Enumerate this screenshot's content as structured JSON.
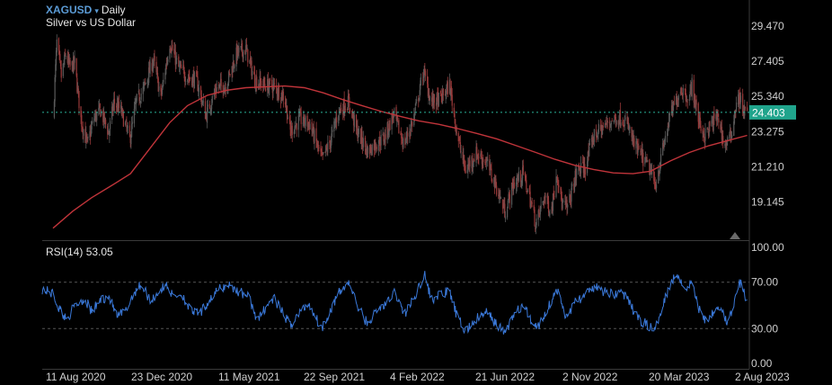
{
  "header": {
    "symbol": "XAGUSD",
    "dropdown_glyph": "▾",
    "timeframe": "Daily",
    "description": "Silver vs US Dollar"
  },
  "indicator": {
    "label": "RSI(14)",
    "value": "53.05"
  },
  "chart_data": [
    {
      "type": "candlestick",
      "title": "XAGUSD Daily",
      "subtitle": "Silver vs US Dollar",
      "y_axis_side": "right",
      "y_ticks": [
        19.145,
        21.21,
        23.275,
        25.34,
        27.405,
        29.47
      ],
      "y_tick_labels": [
        "19.145",
        "21.210",
        "23.275",
        "25.340",
        "27.405",
        "29.470"
      ],
      "ylim": [
        16.9,
        31.0
      ],
      "last_price": 24.403,
      "last_price_label": "24.403",
      "x_tick_labels": [
        "11 Aug 2020",
        "23 Dec 2020",
        "11 May 2021",
        "22 Sep 2021",
        "4 Feb 2022",
        "21 Jun 2022",
        "2 Nov 2022",
        "20 Mar 2023",
        "2 Aug 2023"
      ],
      "close_path": [
        [
          "2020-08-01",
          24.0
        ],
        [
          "2020-08-07",
          28.5
        ],
        [
          "2020-08-14",
          26.5
        ],
        [
          "2020-08-21",
          27.8
        ],
        [
          "2020-08-28",
          27.0
        ],
        [
          "2020-09-04",
          27.3
        ],
        [
          "2020-09-14",
          24.0
        ],
        [
          "2020-09-24",
          22.5
        ],
        [
          "2020-10-05",
          24.1
        ],
        [
          "2020-10-15",
          24.5
        ],
        [
          "2020-10-28",
          23.2
        ],
        [
          "2020-11-05",
          25.0
        ],
        [
          "2020-11-16",
          24.5
        ],
        [
          "2020-11-30",
          22.8
        ],
        [
          "2020-12-10",
          25.0
        ],
        [
          "2020-12-22",
          25.8
        ],
        [
          "2021-01-06",
          27.5
        ],
        [
          "2021-01-18",
          25.3
        ],
        [
          "2021-02-01",
          28.5
        ],
        [
          "2021-02-15",
          27.0
        ],
        [
          "2021-03-01",
          26.5
        ],
        [
          "2021-03-15",
          26.3
        ],
        [
          "2021-03-30",
          24.2
        ],
        [
          "2021-04-15",
          25.8
        ],
        [
          "2021-05-01",
          26.0
        ],
        [
          "2021-05-18",
          27.9
        ],
        [
          "2021-06-01",
          28.1
        ],
        [
          "2021-06-15",
          26.3
        ],
        [
          "2021-07-01",
          26.0
        ],
        [
          "2021-07-15",
          25.9
        ],
        [
          "2021-08-01",
          25.3
        ],
        [
          "2021-08-10",
          23.3
        ],
        [
          "2021-08-25",
          24.0
        ],
        [
          "2021-09-10",
          23.7
        ],
        [
          "2021-09-29",
          21.6
        ],
        [
          "2021-10-12",
          22.7
        ],
        [
          "2021-10-25",
          24.5
        ],
        [
          "2021-11-10",
          25.0
        ],
        [
          "2021-11-22",
          23.4
        ],
        [
          "2021-12-10",
          22.1
        ],
        [
          "2021-12-20",
          22.5
        ],
        [
          "2022-01-05",
          22.9
        ],
        [
          "2022-01-20",
          24.3
        ],
        [
          "2022-02-05",
          22.5
        ],
        [
          "2022-02-20",
          24.0
        ],
        [
          "2022-03-08",
          26.8
        ],
        [
          "2022-03-20",
          25.0
        ],
        [
          "2022-04-05",
          25.2
        ],
        [
          "2022-04-18",
          26.0
        ],
        [
          "2022-05-01",
          22.9
        ],
        [
          "2022-05-13",
          21.0
        ],
        [
          "2022-05-30",
          22.0
        ],
        [
          "2022-06-15",
          21.5
        ],
        [
          "2022-07-01",
          20.0
        ],
        [
          "2022-07-14",
          18.6
        ],
        [
          "2022-07-28",
          20.2
        ],
        [
          "2022-08-12",
          20.8
        ],
        [
          "2022-08-25",
          19.0
        ],
        [
          "2022-09-01",
          17.8
        ],
        [
          "2022-09-15",
          19.5
        ],
        [
          "2022-09-25",
          18.5
        ],
        [
          "2022-10-04",
          21.0
        ],
        [
          "2022-10-12",
          19.0
        ],
        [
          "2022-10-21",
          18.8
        ],
        [
          "2022-11-05",
          21.0
        ],
        [
          "2022-11-18",
          21.2
        ],
        [
          "2022-12-01",
          23.0
        ],
        [
          "2022-12-15",
          23.5
        ],
        [
          "2023-01-01",
          24.0
        ],
        [
          "2023-01-15",
          24.1
        ],
        [
          "2023-01-25",
          23.5
        ],
        [
          "2023-02-03",
          22.5
        ],
        [
          "2023-02-15",
          21.8
        ],
        [
          "2023-02-28",
          21.0
        ],
        [
          "2023-03-08",
          20.1
        ],
        [
          "2023-03-20",
          22.2
        ],
        [
          "2023-03-31",
          24.1
        ],
        [
          "2023-04-12",
          25.3
        ],
        [
          "2023-04-18",
          25.8
        ],
        [
          "2023-05-01",
          25.2
        ],
        [
          "2023-05-05",
          26.0
        ],
        [
          "2023-05-15",
          24.0
        ],
        [
          "2023-05-25",
          23.0
        ],
        [
          "2023-06-05",
          23.7
        ],
        [
          "2023-06-15",
          24.2
        ],
        [
          "2023-06-25",
          22.4
        ],
        [
          "2023-07-05",
          23.0
        ],
        [
          "2023-07-14",
          25.0
        ],
        [
          "2023-07-20",
          25.2
        ],
        [
          "2023-07-25",
          24.5
        ],
        [
          "2023-07-31",
          24.4
        ]
      ],
      "moving_average_path": [
        [
          "2020-08-01",
          17.6
        ],
        [
          "2020-09-01",
          18.6
        ],
        [
          "2020-10-01",
          19.4
        ],
        [
          "2020-11-01",
          20.1
        ],
        [
          "2020-12-01",
          20.8
        ],
        [
          "2021-01-01",
          22.3
        ],
        [
          "2021-02-01",
          23.8
        ],
        [
          "2021-03-01",
          24.8
        ],
        [
          "2021-04-01",
          25.4
        ],
        [
          "2021-05-01",
          25.7
        ],
        [
          "2021-06-01",
          25.85
        ],
        [
          "2021-07-01",
          25.9
        ],
        [
          "2021-08-01",
          25.95
        ],
        [
          "2021-09-01",
          25.85
        ],
        [
          "2021-10-01",
          25.55
        ],
        [
          "2021-11-01",
          25.15
        ],
        [
          "2021-12-01",
          24.8
        ],
        [
          "2022-01-01",
          24.45
        ],
        [
          "2022-02-01",
          24.15
        ],
        [
          "2022-03-01",
          23.9
        ],
        [
          "2022-04-01",
          23.7
        ],
        [
          "2022-05-01",
          23.45
        ],
        [
          "2022-06-01",
          23.15
        ],
        [
          "2022-07-01",
          22.85
        ],
        [
          "2022-08-01",
          22.45
        ],
        [
          "2022-09-01",
          22.05
        ],
        [
          "2022-10-01",
          21.65
        ],
        [
          "2022-11-01",
          21.3
        ],
        [
          "2022-12-01",
          21.05
        ],
        [
          "2023-01-01",
          20.85
        ],
        [
          "2023-02-01",
          20.8
        ],
        [
          "2023-03-01",
          20.95
        ],
        [
          "2023-04-01",
          21.55
        ],
        [
          "2023-05-01",
          22.05
        ],
        [
          "2023-06-01",
          22.45
        ],
        [
          "2023-07-01",
          22.75
        ],
        [
          "2023-07-31",
          23.05
        ]
      ],
      "x_range": [
        "2020-07-15",
        "2023-08-02"
      ],
      "colors": {
        "up": "#5a5a5a",
        "down": "#9a3a3a",
        "moving_average": "#c0343a",
        "last_price_line": "#2bb39a",
        "last_price_tag": "#20a48c"
      }
    },
    {
      "type": "line",
      "title": "RSI(14)",
      "y_ticks": [
        0,
        30,
        70,
        100
      ],
      "y_tick_labels": [
        "0.00",
        "30.00",
        "70.00",
        "100.00"
      ],
      "ylim": [
        0,
        100
      ],
      "reference_lines": [
        30,
        70
      ],
      "last_value": 53.05,
      "rsi_path": [
        [
          "2020-07-15",
          64
        ],
        [
          "2020-08-01",
          60
        ],
        [
          "2020-08-10",
          48
        ],
        [
          "2020-08-22",
          38
        ],
        [
          "2020-09-05",
          50
        ],
        [
          "2020-09-20",
          56
        ],
        [
          "2020-10-01",
          44
        ],
        [
          "2020-10-15",
          55
        ],
        [
          "2020-10-28",
          58
        ],
        [
          "2020-11-10",
          40
        ],
        [
          "2020-11-25",
          46
        ],
        [
          "2020-12-05",
          60
        ],
        [
          "2020-12-18",
          68
        ],
        [
          "2021-01-02",
          54
        ],
        [
          "2021-01-15",
          62
        ],
        [
          "2021-01-28",
          68
        ],
        [
          "2021-02-05",
          58
        ],
        [
          "2021-02-20",
          60
        ],
        [
          "2021-03-05",
          46
        ],
        [
          "2021-03-20",
          42
        ],
        [
          "2021-04-05",
          55
        ],
        [
          "2021-04-20",
          64
        ],
        [
          "2021-05-05",
          68
        ],
        [
          "2021-05-20",
          62
        ],
        [
          "2021-06-05",
          58
        ],
        [
          "2021-06-20",
          36
        ],
        [
          "2021-07-01",
          48
        ],
        [
          "2021-07-15",
          56
        ],
        [
          "2021-07-28",
          44
        ],
        [
          "2021-08-10",
          33
        ],
        [
          "2021-08-25",
          44
        ],
        [
          "2021-09-08",
          52
        ],
        [
          "2021-09-28",
          30
        ],
        [
          "2021-10-12",
          46
        ],
        [
          "2021-10-25",
          60
        ],
        [
          "2021-11-10",
          70
        ],
        [
          "2021-11-25",
          48
        ],
        [
          "2021-12-10",
          34
        ],
        [
          "2021-12-25",
          46
        ],
        [
          "2022-01-10",
          52
        ],
        [
          "2022-01-22",
          62
        ],
        [
          "2022-02-05",
          42
        ],
        [
          "2022-02-20",
          55
        ],
        [
          "2022-03-05",
          72
        ],
        [
          "2022-03-10",
          76
        ],
        [
          "2022-03-20",
          55
        ],
        [
          "2022-04-05",
          60
        ],
        [
          "2022-04-18",
          62
        ],
        [
          "2022-05-01",
          38
        ],
        [
          "2022-05-13",
          28
        ],
        [
          "2022-05-30",
          38
        ],
        [
          "2022-06-15",
          44
        ],
        [
          "2022-07-01",
          34
        ],
        [
          "2022-07-14",
          26
        ],
        [
          "2022-07-28",
          42
        ],
        [
          "2022-08-12",
          50
        ],
        [
          "2022-08-25",
          36
        ],
        [
          "2022-09-05",
          32
        ],
        [
          "2022-09-18",
          46
        ],
        [
          "2022-10-04",
          64
        ],
        [
          "2022-10-18",
          40
        ],
        [
          "2022-11-05",
          55
        ],
        [
          "2022-11-18",
          58
        ],
        [
          "2022-12-01",
          66
        ],
        [
          "2022-12-15",
          62
        ],
        [
          "2023-01-01",
          60
        ],
        [
          "2023-01-15",
          62
        ],
        [
          "2023-01-28",
          50
        ],
        [
          "2023-02-10",
          38
        ],
        [
          "2023-02-22",
          34
        ],
        [
          "2023-03-08",
          28
        ],
        [
          "2023-03-20",
          52
        ],
        [
          "2023-04-02",
          70
        ],
        [
          "2023-04-14",
          78
        ],
        [
          "2023-04-22",
          64
        ],
        [
          "2023-05-05",
          70
        ],
        [
          "2023-05-15",
          48
        ],
        [
          "2023-05-28",
          36
        ],
        [
          "2023-06-08",
          46
        ],
        [
          "2023-06-18",
          50
        ],
        [
          "2023-06-28",
          36
        ],
        [
          "2023-07-08",
          44
        ],
        [
          "2023-07-16",
          66
        ],
        [
          "2023-07-22",
          70
        ],
        [
          "2023-07-27",
          58
        ],
        [
          "2023-07-31",
          53
        ]
      ],
      "colors": {
        "line": "#3a78d8",
        "reference": "#555555"
      }
    }
  ]
}
